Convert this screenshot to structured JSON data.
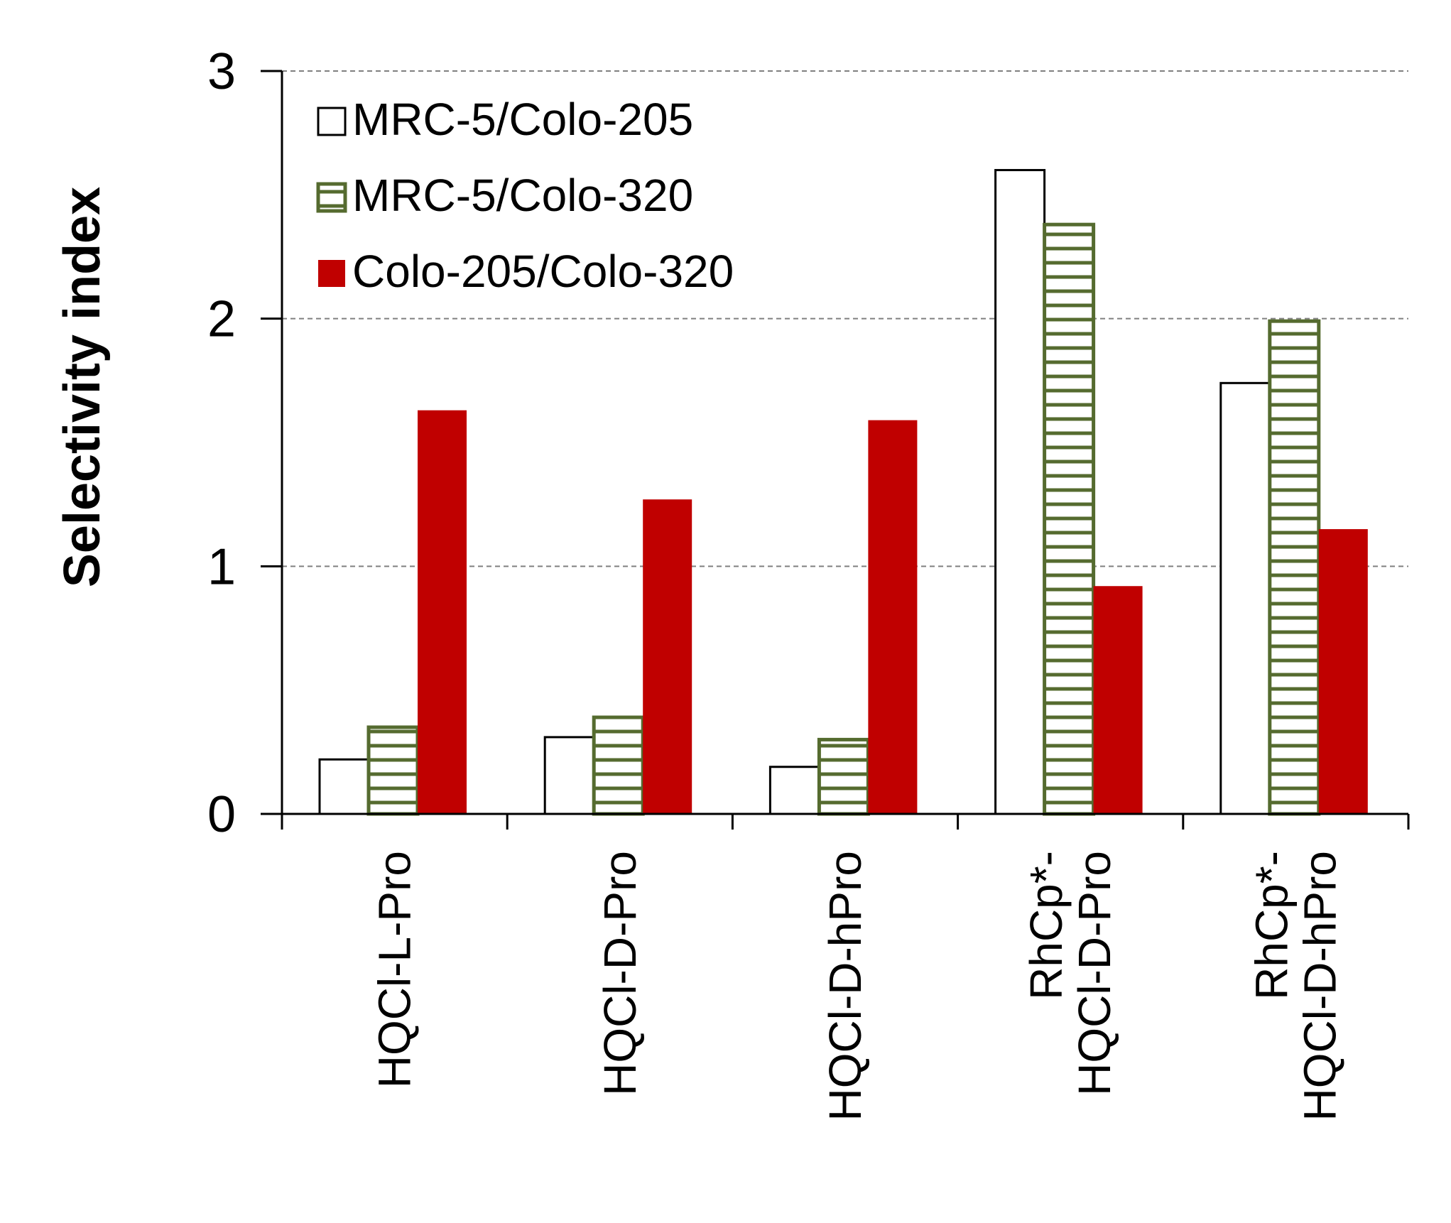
{
  "chart_data": {
    "type": "bar",
    "title": "",
    "xlabel": "",
    "ylabel": "Selectivity index",
    "ylim": [
      0,
      3
    ],
    "yticks": [
      0,
      1,
      2,
      3
    ],
    "grid": "horizontal dashed",
    "legend_position": "top-left",
    "categories": [
      [
        "HQCl-L-Pro"
      ],
      [
        "HQCl-D-Pro"
      ],
      [
        "HQCl-D-hPro"
      ],
      [
        "RhCp*-",
        "HQCl-D-Pro"
      ],
      [
        "RhCp*-",
        "HQCl-D-hPro"
      ]
    ],
    "series": [
      {
        "name": "MRC-5/Colo-205",
        "style": "hollow",
        "values": [
          0.22,
          0.31,
          0.19,
          2.6,
          1.74
        ]
      },
      {
        "name": "MRC-5/Colo-320",
        "style": "hatched",
        "values": [
          0.35,
          0.39,
          0.3,
          2.38,
          1.99
        ]
      },
      {
        "name": "Colo-205/Colo-320",
        "style": "solid",
        "values": [
          1.63,
          1.27,
          1.59,
          0.92,
          1.15
        ]
      }
    ],
    "colors": {
      "hollow_stroke": "#000000",
      "hatch": "#556b2f",
      "solid": "#c00000",
      "grid": "#808080",
      "axis": "#000000"
    }
  }
}
